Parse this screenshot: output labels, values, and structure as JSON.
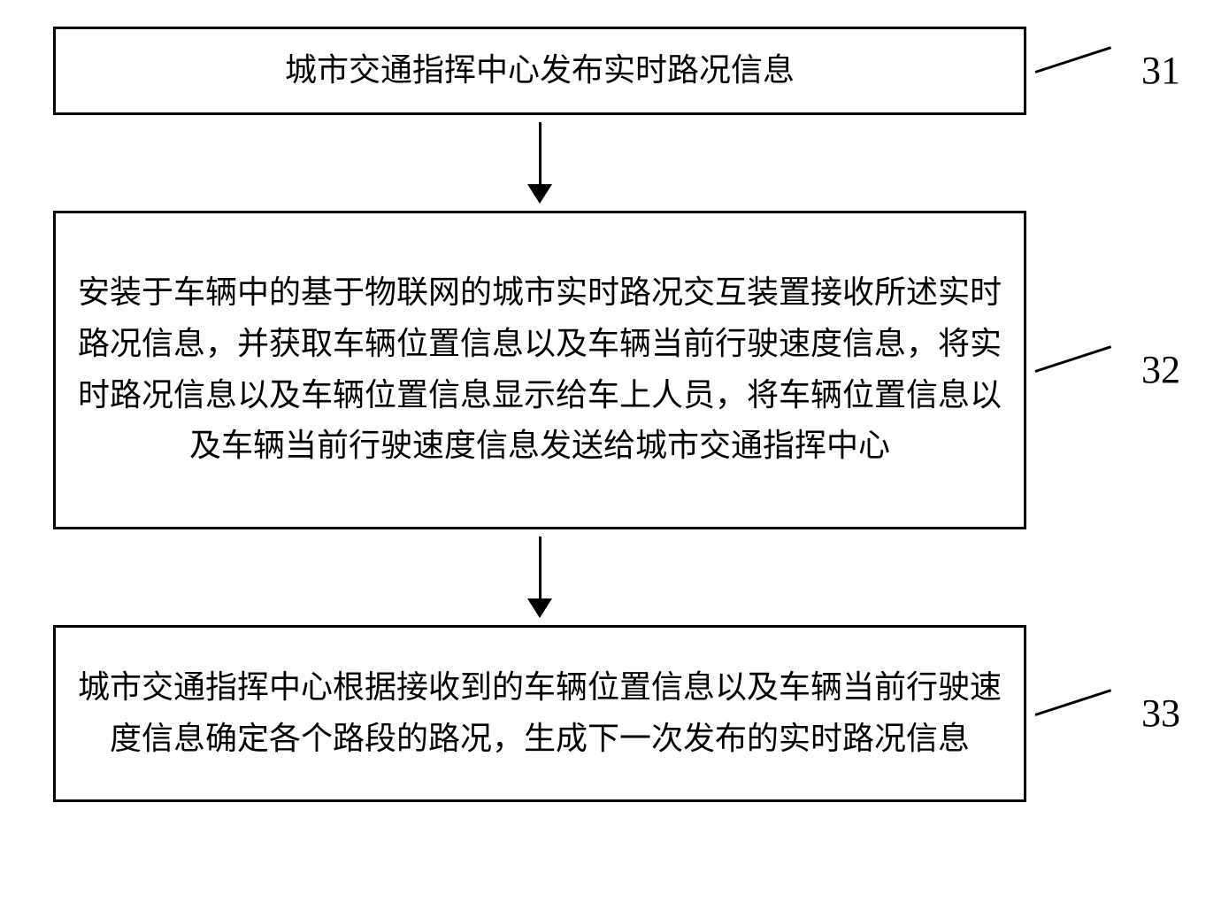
{
  "flowchart": {
    "type": "flowchart",
    "background_color": "#ffffff",
    "border_color": "#000000",
    "border_width": 3,
    "arrow_color": "#000000",
    "font_family": "SimSun",
    "font_size": 36,
    "label_font_size": 44,
    "nodes": [
      {
        "id": "step1",
        "label": "31",
        "text": "城市交通指挥中心发布实时路况信息"
      },
      {
        "id": "step2",
        "label": "32",
        "text": "安装于车辆中的基于物联网的城市实时路况交互装置接收所述实时路况信息，并获取车辆位置信息以及车辆当前行驶速度信息，将实时路况信息以及车辆位置信息显示给车上人员，将车辆位置信息以及车辆当前行驶速度信息发送给城市交通指挥中心"
      },
      {
        "id": "step3",
        "label": "33",
        "text": "城市交通指挥中心根据接收到的车辆位置信息以及车辆当前行驶速度信息确定各个路段的路况，生成下一次发布的实时路况信息"
      }
    ],
    "edges": [
      {
        "from": "step1",
        "to": "step2"
      },
      {
        "from": "step2",
        "to": "step3"
      }
    ]
  }
}
